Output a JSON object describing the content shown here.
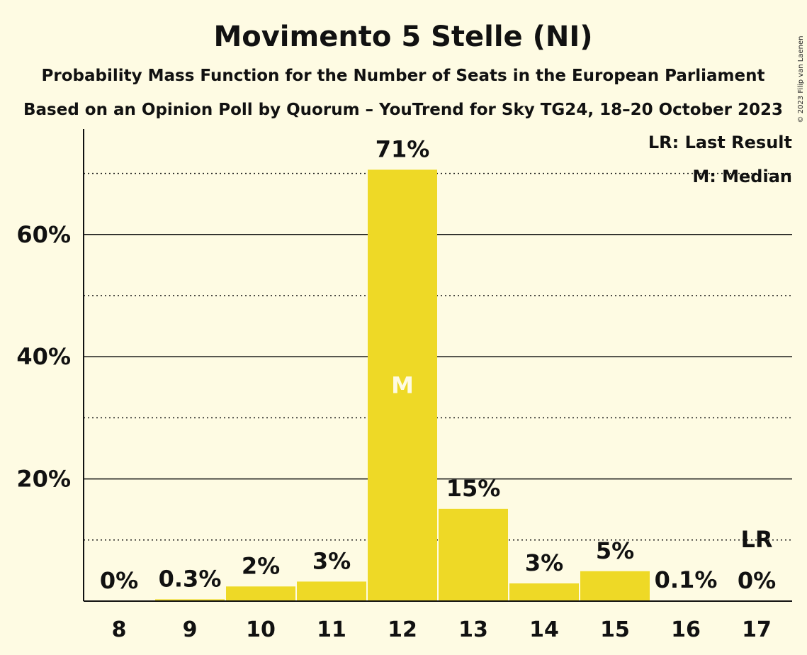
{
  "title": "Movimento 5 Stelle (NI)",
  "subtitle1": "Probability Mass Function for the Number of Seats in the European Parliament",
  "subtitle2": "Based on an Opinion Poll by Quorum – YouTrend for Sky TG24, 18–20 October 2023",
  "legend": {
    "last_result": "LR: Last Result",
    "median": "M: Median"
  },
  "copyright": "© 2023 Filip van Laenen",
  "colors": {
    "background": "#fefbe3",
    "bar": "#eed926",
    "text": "#111111"
  },
  "chart_data": {
    "type": "bar",
    "categories": [
      "8",
      "9",
      "10",
      "11",
      "12",
      "13",
      "14",
      "15",
      "16",
      "17"
    ],
    "values": [
      0,
      0.3,
      2.4,
      3.2,
      70.6,
      15.1,
      2.9,
      4.9,
      0.1,
      0
    ],
    "labels": [
      "0%",
      "0.3%",
      "2%",
      "3%",
      "71%",
      "15%",
      "3%",
      "5%",
      "0.1%",
      "0%"
    ],
    "median_category": "12",
    "median_marker": "M",
    "last_result_category": "17",
    "last_result_marker": "LR",
    "y_ticks": [
      20,
      40,
      60
    ],
    "y_tick_labels": [
      "20%",
      "40%",
      "60%"
    ],
    "y_dotted_gridlines": [
      10,
      30,
      50,
      70
    ],
    "ylim": [
      0,
      77
    ],
    "grid": true,
    "legend_position": "top-right"
  }
}
